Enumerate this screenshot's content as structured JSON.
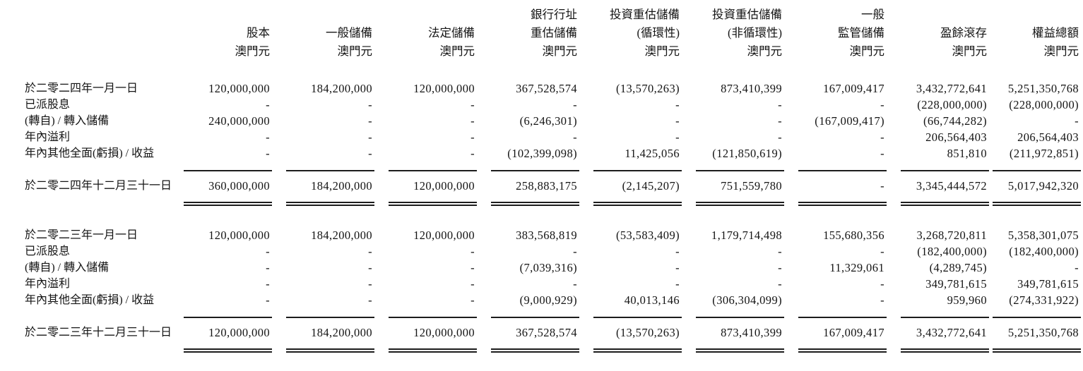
{
  "page": {
    "background": "#ffffff",
    "text_color": "#141414",
    "currency_note": "澳門元"
  },
  "table": {
    "columns": [
      {
        "lines": [
          "",
          "股本",
          "澳門元"
        ]
      },
      {
        "lines": [
          "",
          "一般儲備",
          "澳門元"
        ]
      },
      {
        "lines": [
          "",
          "法定儲備",
          "澳門元"
        ]
      },
      {
        "lines": [
          "銀行行址",
          "重估儲備",
          "澳門元"
        ]
      },
      {
        "lines": [
          "投資重估儲備",
          "(循環性)",
          "澳門元"
        ]
      },
      {
        "lines": [
          "投資重估儲備",
          "(非循環性)",
          "澳門元"
        ]
      },
      {
        "lines": [
          "一般",
          "監管儲備",
          "澳門元"
        ]
      },
      {
        "lines": [
          "",
          "盈餘滾存",
          "澳門元"
        ]
      },
      {
        "lines": [
          "",
          "權益總額",
          "澳門元"
        ]
      }
    ],
    "sections": [
      {
        "rows": [
          {
            "label": "於二零二四年一月一日",
            "values": [
              "120,000,000",
              "184,200,000",
              "120,000,000",
              "367,528,574",
              "(13,570,263)",
              "873,410,399",
              "167,009,417",
              "3,432,772,641",
              "5,251,350,768"
            ]
          },
          {
            "label": "已派股息",
            "values": [
              "-",
              "-",
              "-",
              "-",
              "-",
              "-",
              "-",
              "(228,000,000)",
              "(228,000,000)"
            ]
          },
          {
            "label": "(轉自) / 轉入儲備",
            "values": [
              "240,000,000",
              "-",
              "-",
              "(6,246,301)",
              "-",
              "-",
              "(167,009,417)",
              "(66,744,282)",
              "-"
            ]
          },
          {
            "label": "年內溢利",
            "values": [
              "-",
              "-",
              "-",
              "-",
              "-",
              "-",
              "-",
              "206,564,403",
              "206,564,403"
            ]
          },
          {
            "label": "年內其他全面(虧損) / 收益",
            "values": [
              "-",
              "-",
              "-",
              "(102,399,098)",
              "11,425,056",
              "(121,850,619)",
              "-",
              "851,810",
              "(211,972,851)"
            ]
          }
        ],
        "total": {
          "label": "於二零二四年十二月三十一日",
          "values": [
            "360,000,000",
            "184,200,000",
            "120,000,000",
            "258,883,175",
            "(2,145,207)",
            "751,559,780",
            "-",
            "3,345,444,572",
            "5,017,942,320"
          ]
        }
      },
      {
        "rows": [
          {
            "label": "於二零二三年一月一日",
            "values": [
              "120,000,000",
              "184,200,000",
              "120,000,000",
              "383,568,819",
              "(53,583,409)",
              "1,179,714,498",
              "155,680,356",
              "3,268,720,811",
              "5,358,301,075"
            ]
          },
          {
            "label": "已派股息",
            "values": [
              "-",
              "-",
              "-",
              "-",
              "-",
              "-",
              "-",
              "(182,400,000)",
              "(182,400,000)"
            ]
          },
          {
            "label": "(轉自) / 轉入儲備",
            "values": [
              "-",
              "-",
              "-",
              "(7,039,316)",
              "-",
              "-",
              "11,329,061",
              "(4,289,745)",
              "-"
            ]
          },
          {
            "label": "年內溢利",
            "values": [
              "-",
              "-",
              "-",
              "-",
              "-",
              "-",
              "-",
              "349,781,615",
              "349,781,615"
            ]
          },
          {
            "label": "年內其他全面(虧損) / 收益",
            "values": [
              "-",
              "-",
              "-",
              "(9,000,929)",
              "40,013,146",
              "(306,304,099)",
              "-",
              "959,960",
              "(274,331,922)"
            ]
          }
        ],
        "total": {
          "label": "於二零二三年十二月三十一日",
          "values": [
            "120,000,000",
            "184,200,000",
            "120,000,000",
            "367,528,574",
            "(13,570,263)",
            "873,410,399",
            "167,009,417",
            "3,432,772,641",
            "5,251,350,768"
          ]
        }
      }
    ]
  }
}
